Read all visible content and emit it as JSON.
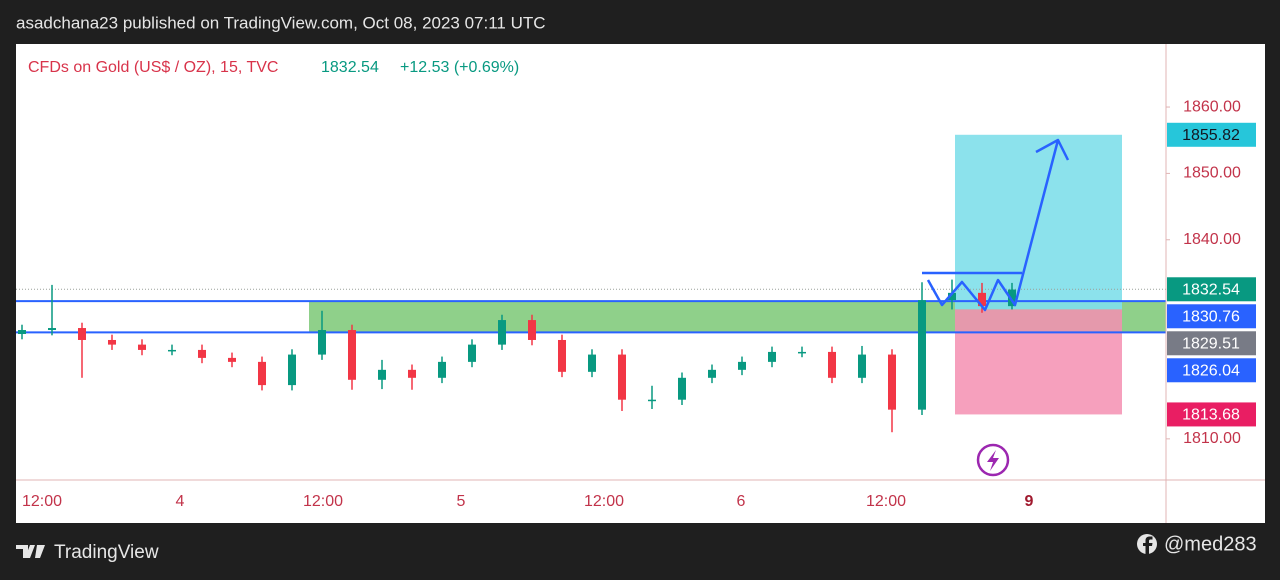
{
  "header": "asadchana23 published on TradingView.com, Oct 08, 2023 07:11 UTC",
  "footer": {
    "brand": "TradingView",
    "handle": "@med283"
  },
  "chart_data": {
    "type": "candlestick",
    "symbol": "CFDs on Gold (US$ / OZ), 15, TVC",
    "last_price": "1832.54",
    "change": "+12.53 (+0.69%)",
    "time_labels": [
      "12:00",
      "4",
      "12:00",
      "5",
      "12:00",
      "6",
      "12:00",
      "9"
    ],
    "open": [
      1825.8,
      1826.4,
      1826.7,
      1824.9,
      1824.2,
      1823.4,
      1823.4,
      1822.2,
      1821.6,
      1818.1,
      1822.7,
      1826.4,
      1818.9,
      1820.4,
      1819.2,
      1821.6,
      1824.2,
      1827.9,
      1824.9,
      1820.1,
      1822.7,
      1815.9,
      1815.9,
      1819.2,
      1820.4,
      1821.6,
      1823.1,
      1823.1,
      1819.2,
      1822.7,
      1814.4,
      1830.9,
      1832.0,
      1830.0
    ],
    "high": [
      1827.2,
      1833.2,
      1827.5,
      1825.7,
      1825.0,
      1824.2,
      1824.2,
      1823.0,
      1822.4,
      1823.5,
      1829.3,
      1827.2,
      1821.9,
      1821.2,
      1822.4,
      1825.0,
      1828.7,
      1828.7,
      1825.7,
      1823.5,
      1823.5,
      1818.0,
      1820.0,
      1821.2,
      1822.4,
      1823.9,
      1823.9,
      1823.9,
      1824.0,
      1823.5,
      1833.6,
      1834.0,
      1833.5,
      1833.5
    ],
    "low": [
      1825.0,
      1825.6,
      1819.2,
      1823.4,
      1822.6,
      1822.6,
      1821.4,
      1820.8,
      1817.3,
      1817.3,
      1821.9,
      1817.4,
      1817.5,
      1817.4,
      1818.4,
      1820.8,
      1823.4,
      1824.1,
      1819.3,
      1819.3,
      1814.2,
      1814.5,
      1815.1,
      1818.4,
      1819.6,
      1820.8,
      1822.3,
      1818.4,
      1818.4,
      1811.0,
      1813.6,
      1829.5,
      1829.0,
      1829.5
    ],
    "close": [
      1826.4,
      1826.7,
      1824.9,
      1824.2,
      1823.4,
      1823.4,
      1822.2,
      1821.6,
      1818.1,
      1822.7,
      1826.4,
      1818.9,
      1820.4,
      1819.2,
      1821.6,
      1824.2,
      1827.9,
      1824.9,
      1820.1,
      1822.7,
      1815.9,
      1815.9,
      1819.2,
      1820.4,
      1821.6,
      1823.1,
      1823.1,
      1819.2,
      1822.7,
      1814.4,
      1830.9,
      1832.0,
      1830.0,
      1832.5
    ],
    "up_color": "#089981",
    "down_color": "#f23645",
    "ylim": [
      1803.8,
      1869.5
    ],
    "yticks": [
      {
        "value": 1810,
        "label": "1810.00"
      },
      {
        "value": 1840,
        "label": "1840.00"
      },
      {
        "value": 1850,
        "label": "1850.00"
      },
      {
        "value": 1860,
        "label": "1860.00"
      }
    ],
    "price_tags": [
      {
        "value": 1855.82,
        "label": "1855.82",
        "color": "#26c6da",
        "text_color": "#131722"
      },
      {
        "value": 1832.54,
        "label": "1832.54",
        "color": "#089981",
        "text_color": "#ffffff"
      },
      {
        "value": 1830.76,
        "label": "1830.76",
        "color": "#2962ff",
        "text_color": "#ffffff"
      },
      {
        "value": 1829.51,
        "label": "1829.51",
        "color": "#787b86",
        "text_color": "#ffffff"
      },
      {
        "value": 1826.04,
        "label": "1826.04",
        "color": "#2962ff",
        "text_color": "#ffffff"
      },
      {
        "value": 1813.68,
        "label": "1813.68",
        "color": "#e91e63",
        "text_color": "#ffffff"
      }
    ]
  }
}
